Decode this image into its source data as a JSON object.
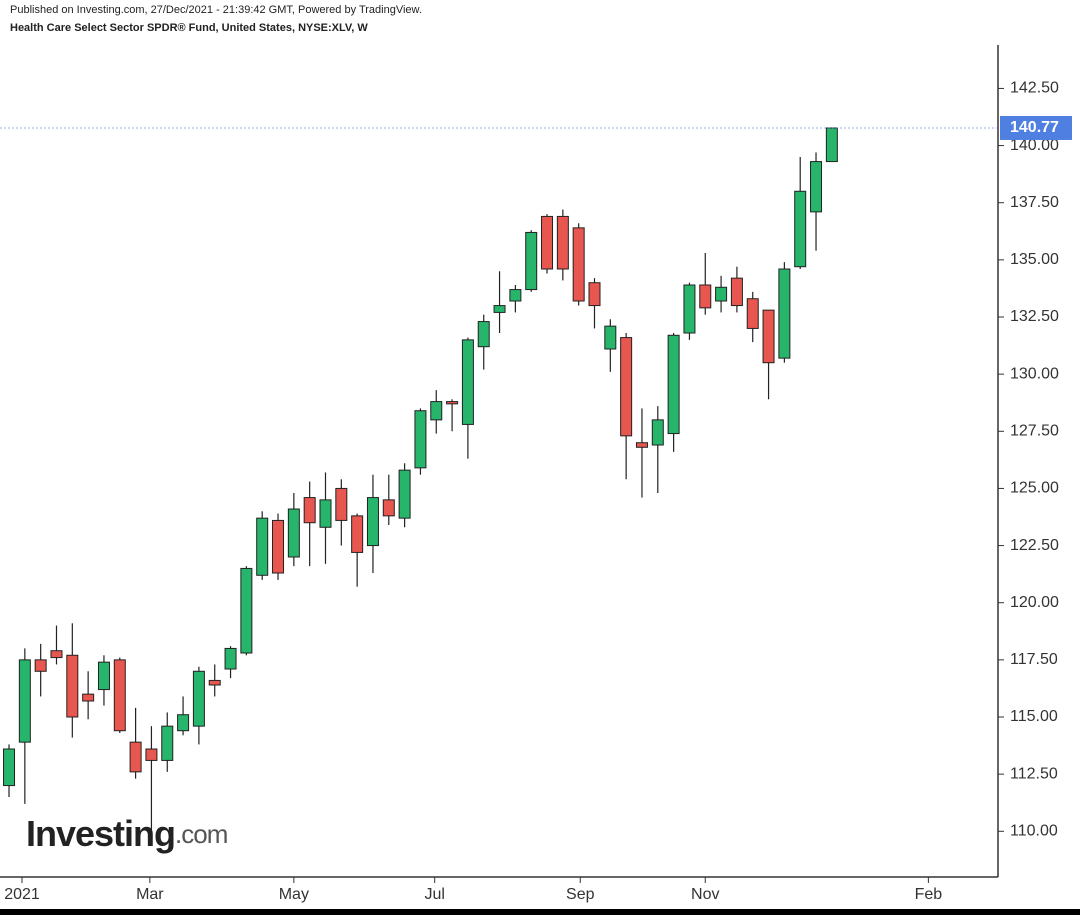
{
  "chart_data": {
    "type": "candlestick",
    "published": "Published on Investing.com, 27/Dec/2021 - 21:39:42 GMT, Powered by TradingView.",
    "title": "Health Care Select Sector SPDR® Fund, United States, NYSE:XLV, W",
    "watermark": [
      "Investing",
      ".com"
    ],
    "up_color": "#26b56a",
    "down_color": "#e8574f",
    "price_line": 140.77,
    "price_line_color": "#4f7fe0",
    "x": [
      0,
      1,
      2,
      3,
      4,
      5,
      6,
      7,
      8,
      9,
      10,
      11,
      12,
      13,
      14,
      15,
      16,
      17,
      18,
      19,
      20,
      21,
      22,
      23,
      24,
      25,
      26,
      27,
      28,
      29,
      30,
      31,
      32,
      33,
      34,
      35,
      36,
      37,
      38,
      39,
      40,
      41,
      42,
      43,
      44,
      45,
      46,
      47,
      48,
      49,
      50,
      51,
      52
    ],
    "open": [
      112.0,
      113.9,
      117.5,
      117.9,
      117.7,
      116.0,
      116.2,
      117.5,
      113.9,
      113.6,
      113.1,
      114.4,
      114.6,
      116.6,
      117.1,
      117.8,
      121.2,
      123.6,
      122.0,
      124.6,
      123.3,
      125.0,
      123.8,
      122.5,
      124.5,
      123.7,
      125.9,
      128.0,
      128.8,
      127.8,
      131.2,
      132.7,
      133.2,
      133.7,
      136.9,
      136.9,
      136.4,
      134.0,
      131.1,
      131.6,
      127.0,
      126.9,
      127.4,
      131.8,
      133.9,
      133.2,
      134.2,
      133.3,
      132.8,
      130.7,
      134.7,
      137.1,
      139.3
    ],
    "high": [
      113.8,
      118.0,
      118.2,
      119.0,
      119.1,
      117.0,
      117.7,
      117.6,
      115.4,
      114.6,
      115.2,
      115.9,
      117.2,
      117.3,
      118.1,
      121.6,
      124.0,
      123.9,
      124.8,
      125.3,
      125.7,
      125.4,
      123.9,
      125.6,
      125.6,
      126.1,
      128.5,
      129.3,
      128.9,
      131.6,
      132.6,
      134.5,
      133.9,
      136.3,
      137.0,
      137.2,
      136.6,
      134.2,
      132.4,
      131.8,
      128.5,
      128.6,
      131.8,
      134.0,
      135.3,
      134.3,
      134.7,
      133.6,
      132.8,
      134.9,
      139.5,
      139.7,
      140.77
    ],
    "low": [
      111.5,
      111.2,
      115.9,
      117.3,
      114.1,
      114.9,
      115.5,
      114.3,
      112.3,
      110.0,
      112.6,
      114.2,
      113.8,
      115.9,
      116.7,
      117.7,
      121.0,
      121.0,
      121.6,
      121.6,
      121.7,
      122.5,
      120.7,
      121.3,
      123.4,
      123.3,
      125.6,
      127.4,
      127.5,
      126.3,
      130.2,
      131.8,
      132.7,
      133.6,
      134.4,
      134.1,
      133.0,
      132.0,
      130.1,
      125.4,
      124.6,
      124.8,
      126.6,
      131.5,
      132.6,
      132.7,
      132.7,
      131.4,
      128.9,
      130.5,
      134.6,
      135.4,
      139.3
    ],
    "close": [
      113.6,
      117.5,
      117.0,
      117.6,
      115.0,
      115.7,
      117.4,
      114.4,
      112.6,
      113.1,
      114.6,
      115.1,
      117.0,
      116.4,
      118.0,
      121.5,
      123.7,
      121.3,
      124.1,
      123.5,
      124.5,
      123.6,
      122.2,
      124.6,
      123.8,
      125.8,
      128.4,
      128.8,
      128.7,
      131.5,
      132.3,
      133.0,
      133.7,
      136.2,
      134.6,
      134.6,
      133.2,
      133.0,
      132.1,
      127.3,
      126.8,
      128.0,
      131.7,
      133.9,
      132.9,
      133.8,
      133.0,
      132.0,
      130.5,
      134.6,
      138.0,
      139.3,
      140.77
    ],
    "xlim": [
      -0.57,
      62.5
    ],
    "xticks": [
      {
        "value": 0.82,
        "label": "2021"
      },
      {
        "value": 8.9,
        "label": "Mar"
      },
      {
        "value": 18.0,
        "label": "May"
      },
      {
        "value": 26.9,
        "label": "Jul"
      },
      {
        "value": 36.1,
        "label": "Sep"
      },
      {
        "value": 44.0,
        "label": "Nov"
      },
      {
        "value": 58.1,
        "label": "Feb"
      }
    ],
    "ylim": [
      108.0,
      144.4
    ],
    "yticks": [
      {
        "value": 110,
        "label": "110.00"
      },
      {
        "value": 112.5,
        "label": "112.50"
      },
      {
        "value": 115,
        "label": "115.00"
      },
      {
        "value": 117.5,
        "label": "117.50"
      },
      {
        "value": 120,
        "label": "120.00"
      },
      {
        "value": 122.5,
        "label": "122.50"
      },
      {
        "value": 125,
        "label": "125.00"
      },
      {
        "value": 127.5,
        "label": "127.50"
      },
      {
        "value": 130,
        "label": "130.00"
      },
      {
        "value": 132.5,
        "label": "132.50"
      },
      {
        "value": 135,
        "label": "135.00"
      },
      {
        "value": 137.5,
        "label": "137.50"
      },
      {
        "value": 140,
        "label": "140.00"
      },
      {
        "value": 142.5,
        "label": "142.50"
      }
    ]
  }
}
